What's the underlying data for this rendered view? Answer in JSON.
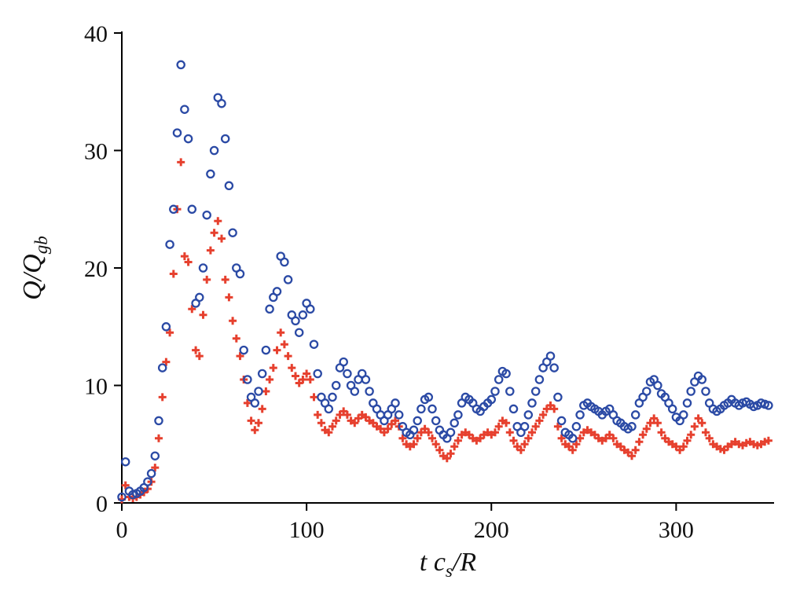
{
  "figure": {
    "background": "#ffffff",
    "axis_color": "#000000"
  },
  "chart_data": {
    "type": "scatter",
    "title": "",
    "xlabel": "t c_s/R",
    "ylabel": "Q/Q_gb",
    "xlabel_parts": {
      "pre": "t c",
      "sub": "s",
      "post": "/R"
    },
    "ylabel_parts": {
      "pre": "Q/Q",
      "sub": "gb",
      "post": ""
    },
    "xlim": [
      0,
      353
    ],
    "ylim": [
      0,
      40
    ],
    "xticks": [
      0,
      100,
      200,
      300
    ],
    "yticks": [
      0,
      10,
      20,
      30,
      40
    ],
    "grid": false,
    "legend": "none",
    "axis_color": "#000000",
    "x": {
      "start": 0,
      "step": 2,
      "count": 176
    },
    "series": [
      {
        "name": "series-red-plus",
        "marker": "plus",
        "color": "#e6402e",
        "values": [
          0.3,
          1.5,
          0.5,
          0.4,
          0.5,
          0.7,
          0.9,
          1.2,
          1.8,
          3.0,
          5.5,
          9.0,
          12.0,
          14.5,
          19.5,
          25.0,
          29.0,
          21.0,
          20.5,
          16.5,
          13.0,
          12.5,
          16.0,
          19.0,
          21.5,
          23.0,
          24.0,
          22.5,
          19.0,
          17.5,
          15.5,
          14.0,
          12.5,
          10.5,
          8.5,
          7.0,
          6.2,
          6.8,
          8.0,
          9.5,
          10.5,
          11.5,
          13.0,
          14.5,
          13.5,
          12.5,
          11.5,
          10.8,
          10.2,
          10.5,
          11.0,
          10.5,
          9.0,
          7.5,
          6.8,
          6.2,
          6.0,
          6.5,
          7.0,
          7.5,
          7.8,
          7.5,
          7.0,
          6.8,
          7.2,
          7.5,
          7.3,
          7.0,
          6.8,
          6.5,
          6.3,
          6.0,
          6.3,
          6.7,
          7.0,
          6.5,
          5.5,
          5.0,
          4.8,
          5.0,
          5.5,
          6.0,
          6.3,
          6.0,
          5.5,
          5.0,
          4.5,
          4.0,
          3.8,
          4.2,
          4.8,
          5.3,
          5.8,
          6.0,
          5.8,
          5.5,
          5.3,
          5.5,
          5.8,
          6.0,
          5.8,
          6.0,
          6.5,
          7.0,
          6.8,
          6.0,
          5.3,
          4.8,
          4.5,
          5.0,
          5.5,
          6.0,
          6.5,
          7.0,
          7.5,
          8.0,
          8.3,
          8.0,
          6.5,
          5.5,
          5.0,
          4.8,
          4.5,
          5.0,
          5.5,
          6.0,
          6.2,
          6.0,
          5.8,
          5.5,
          5.3,
          5.5,
          5.8,
          5.5,
          5.0,
          4.8,
          4.5,
          4.3,
          4.0,
          4.5,
          5.2,
          5.8,
          6.3,
          6.8,
          7.2,
          6.8,
          6.0,
          5.5,
          5.2,
          5.0,
          4.8,
          4.5,
          4.8,
          5.3,
          5.8,
          6.5,
          7.2,
          6.8,
          6.0,
          5.5,
          5.0,
          4.8,
          4.6,
          4.5,
          4.8,
          5.0,
          5.2,
          5.0,
          4.9,
          5.1,
          5.2,
          5.0,
          4.9,
          5.0,
          5.2,
          5.3
        ]
      },
      {
        "name": "series-blue-circles",
        "marker": "circle",
        "color": "#2b4aa5",
        "values": [
          0.5,
          3.5,
          1.0,
          0.7,
          0.8,
          1.0,
          1.3,
          1.8,
          2.5,
          4.0,
          7.0,
          11.5,
          15.0,
          22.0,
          25.0,
          31.5,
          37.3,
          33.5,
          31.0,
          25.0,
          17.0,
          17.5,
          20.0,
          24.5,
          28.0,
          30.0,
          34.5,
          34.0,
          31.0,
          27.0,
          23.0,
          20.0,
          19.5,
          13.0,
          10.5,
          9.0,
          8.5,
          9.5,
          11.0,
          13.0,
          16.5,
          17.5,
          18.0,
          21.0,
          20.5,
          19.0,
          16.0,
          15.5,
          14.5,
          16.0,
          17.0,
          16.5,
          13.5,
          11.0,
          9.0,
          8.5,
          8.0,
          9.0,
          10.0,
          11.5,
          12.0,
          11.0,
          10.0,
          9.5,
          10.5,
          11.0,
          10.5,
          9.5,
          8.5,
          8.0,
          7.5,
          7.0,
          7.5,
          8.0,
          8.5,
          7.5,
          6.5,
          6.0,
          5.8,
          6.2,
          7.0,
          8.0,
          8.8,
          9.0,
          8.0,
          7.0,
          6.2,
          5.8,
          5.5,
          6.0,
          6.8,
          7.5,
          8.5,
          9.0,
          8.8,
          8.5,
          8.0,
          7.8,
          8.2,
          8.5,
          8.8,
          9.5,
          10.5,
          11.2,
          11.0,
          9.5,
          8.0,
          6.5,
          6.0,
          6.5,
          7.5,
          8.5,
          9.5,
          10.5,
          11.5,
          12.0,
          12.5,
          11.5,
          9.0,
          7.0,
          6.0,
          5.8,
          5.5,
          6.5,
          7.5,
          8.3,
          8.5,
          8.2,
          8.0,
          7.8,
          7.5,
          7.8,
          8.0,
          7.5,
          7.0,
          6.8,
          6.5,
          6.3,
          6.5,
          7.5,
          8.5,
          9.0,
          9.5,
          10.3,
          10.5,
          10.0,
          9.3,
          9.0,
          8.5,
          8.0,
          7.3,
          7.0,
          7.5,
          8.5,
          9.5,
          10.3,
          10.8,
          10.5,
          9.5,
          8.5,
          8.0,
          7.8,
          8.0,
          8.3,
          8.5,
          8.8,
          8.5,
          8.3,
          8.5,
          8.6,
          8.4,
          8.2,
          8.3,
          8.5,
          8.4,
          8.3
        ]
      }
    ]
  }
}
